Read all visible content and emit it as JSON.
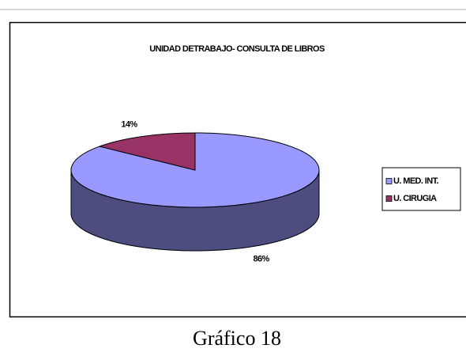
{
  "chart_data": {
    "type": "pie",
    "title": "UNIDAD DETRABAJO- CONSULTA DE LIBROS",
    "categories": [
      "U. MED. INT.",
      "U. CIRUGIA"
    ],
    "values": [
      86,
      14
    ],
    "value_labels": [
      "86%",
      "14%"
    ],
    "colors": [
      "#9999ff",
      "#993366"
    ],
    "legend": "right"
  },
  "caption": "Gráfico 18"
}
